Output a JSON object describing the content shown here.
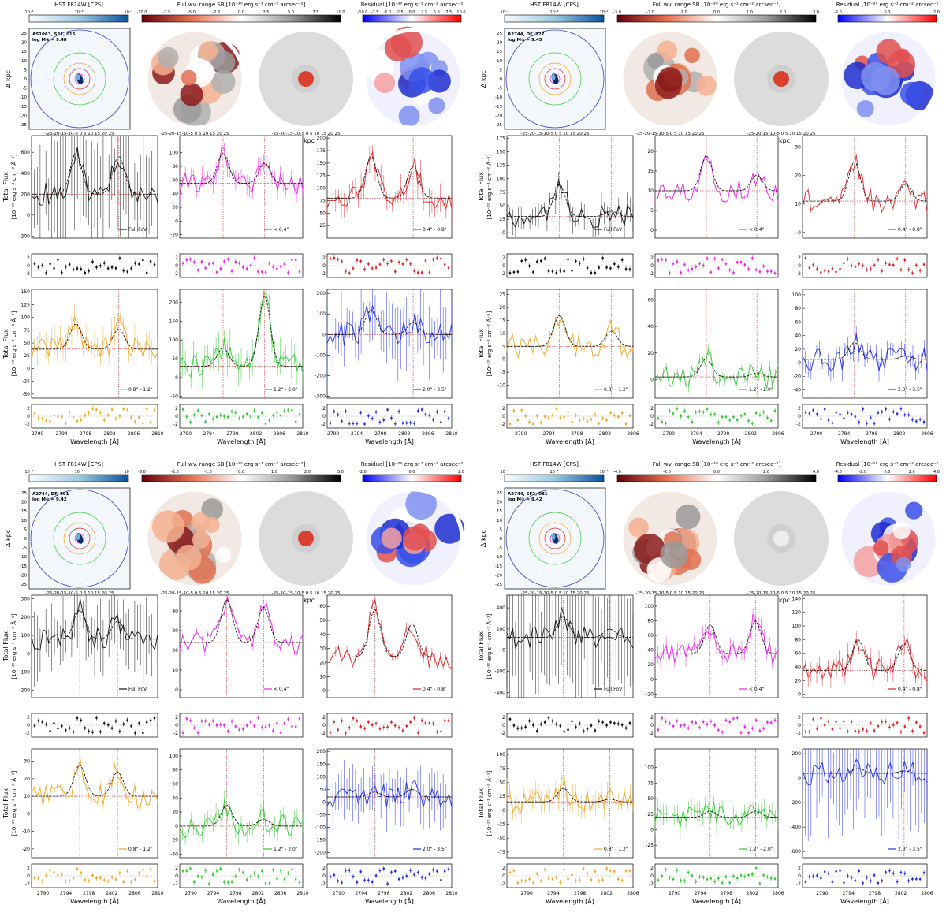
{
  "colors": {
    "fov": "#111111",
    "r1": "#ee22ee",
    "r2": "#e02424",
    "r3": "#f5a623",
    "r4": "#33cc33",
    "r5": "#1f2ee8"
  },
  "image_headers": {
    "hst": "HST F814W [CPS]",
    "full_sb": "Full wv. range SB [10⁻²⁰ erg s⁻¹ cm⁻² arcsec⁻²]",
    "residual": "Residual [10⁻²⁰ erg s⁻¹ cm⁻² arcsec⁻²"
  },
  "hst_ticks": [
    "10⁻⁴",
    "10⁻³",
    "10⁻²"
  ],
  "axis_text": {
    "dkpc": "Δ kpc",
    "wavelength": "Wavelength [Å]",
    "flux_l1": "Total Flux",
    "flux_l2": "[10⁻²⁰ erg s⁻¹ cm⁻² Å⁻¹]"
  },
  "kpc_ticks_y": [
    "25",
    "20",
    "15",
    "10",
    "5",
    "0",
    "-5",
    "-10",
    "-15",
    "-20",
    "-25"
  ],
  "kpc_ticks_x": "-25-20-15-10-5 0 5 10 15 20 25",
  "resid_ticks": [
    "2",
    "0",
    "-2"
  ],
  "chart_data": [
    {
      "type": "line",
      "galaxy": "AS1063, SF1, 015",
      "mass": "log M⊙ = 9.48",
      "sb_ticks": [
        "-10.0",
        "-7.5",
        "-5.0",
        "-2.5",
        "0.0",
        "2.5",
        "5.0",
        "7.5",
        "10.0"
      ],
      "res_ticks": [
        "-10.0",
        "-7.5",
        "-5.0",
        "-2.5",
        "0.0",
        "2.5",
        "5.0",
        "7.5",
        "10.0"
      ],
      "xlim": [
        2789,
        2810
      ],
      "xticks": [
        "2790",
        "2794",
        "2798",
        "2802",
        "2806",
        "2810"
      ],
      "lines": [
        2796.4,
        2803.5
      ],
      "panels": [
        {
          "name": "Full FoV",
          "color": "fov",
          "ylim": [
            -220,
            760
          ],
          "yticks": [
            "600",
            "400",
            "200",
            "0",
            "-200"
          ],
          "base": 200,
          "peaks": [
            400,
            370
          ]
        },
        {
          "name": "< 0.4\"",
          "color": "r1",
          "ylim": [
            -25,
            125
          ],
          "yticks": [
            "100",
            "80",
            "60",
            "40",
            "20",
            "0",
            "-20"
          ],
          "base": 55,
          "peaks": [
            45,
            30
          ]
        },
        {
          "name": "0.4\" - 0.8\"",
          "color": "r2",
          "ylim": [
            0,
            205
          ],
          "yticks": [
            "200",
            "175",
            "150",
            "125",
            "100",
            "75",
            "50",
            "25"
          ],
          "base": 80,
          "peaks": [
            85,
            65
          ]
        },
        {
          "name": "0.8\" - 1.2\"",
          "color": "r3",
          "ylim": [
            -58,
            155
          ],
          "yticks": [
            "150",
            "125",
            "100",
            "75",
            "50",
            "25",
            "0",
            "-25",
            "-50"
          ],
          "base": 38,
          "peaks": [
            50,
            40
          ]
        },
        {
          "name": "1.2\" - 2.0\"",
          "color": "r4",
          "ylim": [
            -55,
            235
          ],
          "yticks": [
            "200",
            "150",
            "100",
            "50",
            "0",
            "-50"
          ],
          "base": 30,
          "peaks": [
            50,
            190
          ]
        },
        {
          "name": "2.0\" - 3.5\"",
          "color": "r5",
          "ylim": [
            -310,
            220
          ],
          "yticks": [
            "200",
            "100",
            "0",
            "-100",
            "-200",
            "-300"
          ],
          "base": 0,
          "peaks": [
            120,
            60
          ]
        }
      ]
    },
    {
      "type": "line",
      "galaxy": "A2744, DF, 227",
      "mass": "log M⊙ = 9.45",
      "sb_ticks": [
        "-3.0",
        "-2.0",
        "-1.0",
        "0.0",
        "1.0",
        "2.0",
        "3.0"
      ],
      "res_ticks": [
        "-2.0",
        "0.0",
        "2.0"
      ],
      "xlim": [
        2788,
        2806
      ],
      "xticks": [
        "2790",
        "2794",
        "2798",
        "2802",
        "2806"
      ],
      "lines": [
        2795.5,
        2802.9
      ],
      "panels": [
        {
          "name": "Full FoV",
          "color": "fov",
          "ylim": [
            -10,
            180
          ],
          "yticks": [
            "175",
            "150",
            "125",
            "100",
            "75",
            "50",
            "25",
            "0"
          ],
          "base": 30,
          "peaks": [
            60,
            10
          ]
        },
        {
          "name": "< 0.4\"",
          "color": "r1",
          "ylim": [
            -2,
            24
          ],
          "yticks": [
            "20",
            "15",
            "10",
            "5",
            "0"
          ],
          "base": 10,
          "peaks": [
            9,
            4
          ]
        },
        {
          "name": "0.4\" - 0.8\"",
          "color": "r2",
          "ylim": [
            -2,
            34
          ],
          "yticks": [
            "30",
            "20",
            "10",
            "0"
          ],
          "base": 11,
          "peaks": [
            14,
            6
          ]
        },
        {
          "name": "0.8\" - 1.2\"",
          "color": "r3",
          "ylim": [
            -15,
            27
          ],
          "yticks": [
            "25",
            "20",
            "15",
            "10",
            "5",
            "0",
            "-5",
            "-10"
          ],
          "base": 5,
          "peaks": [
            12,
            6
          ]
        },
        {
          "name": "1.2\" - 2.0\"",
          "color": "r4",
          "ylim": [
            -14,
            68
          ],
          "yticks": [
            "60",
            "40",
            "20",
            "0"
          ],
          "base": 2,
          "peaks": [
            14,
            3
          ]
        },
        {
          "name": "2.0\" - 3.5\"",
          "color": "r5",
          "ylim": [
            -52,
            108
          ],
          "yticks": [
            "100",
            "80",
            "60",
            "40",
            "20",
            "0",
            "-20",
            "-40"
          ],
          "base": 5,
          "peaks": [
            25,
            5
          ]
        }
      ]
    },
    {
      "type": "line",
      "galaxy": "A2744, DF, 091",
      "mass": "log M⊙ = 9.42",
      "sb_ticks": [
        "-3.0",
        "-2.0",
        "-1.0",
        "0.0",
        "1.0",
        "2.0",
        "3.0"
      ],
      "res_ticks": [
        "-2.0",
        "0.0",
        "2.0"
      ],
      "xlim": [
        2788,
        2810
      ],
      "xticks": [
        "2790",
        "2794",
        "2798",
        "2802",
        "2806",
        "2810"
      ],
      "lines": [
        2796.4,
        2803.0
      ],
      "panels": [
        {
          "name": "Full FoV",
          "color": "fov",
          "ylim": [
            -240,
            320
          ],
          "yticks": [
            "300",
            "200",
            "100",
            "0",
            "-100",
            "-200"
          ],
          "base": 80,
          "peaks": [
            160,
            100
          ]
        },
        {
          "name": "< 0.4\"",
          "color": "r1",
          "ylim": [
            -4,
            48
          ],
          "yticks": [
            "40",
            "30",
            "20",
            "10",
            "0"
          ],
          "base": 24,
          "peaks": [
            22,
            18
          ]
        },
        {
          "name": "0.4\" - 0.8\"",
          "color": "r2",
          "ylim": [
            -5,
            68
          ],
          "yticks": [
            "60",
            "50",
            "40",
            "30",
            "20",
            "10",
            "0"
          ],
          "base": 24,
          "peaks": [
            34,
            24
          ]
        },
        {
          "name": "0.8\" - 1.2\"",
          "color": "r3",
          "ylim": [
            -25,
            37
          ],
          "yticks": [
            "30",
            "20",
            "10",
            "0",
            "-10",
            "-20"
          ],
          "base": 10,
          "peaks": [
            18,
            14
          ]
        },
        {
          "name": "1.2\" - 2.0\"",
          "color": "r4",
          "ylim": [
            -45,
            110
          ],
          "yticks": [
            "100",
            "80",
            "60",
            "40",
            "20",
            "0",
            "-20",
            "-40"
          ],
          "base": 0,
          "peaks": [
            30,
            10
          ]
        },
        {
          "name": "2.0\" - 3.5\"",
          "color": "r5",
          "ylim": [
            -220,
            210
          ],
          "yticks": [
            "200",
            "150",
            "100",
            "50",
            "0",
            "-50",
            "-100",
            "-150",
            "-200"
          ],
          "base": 20,
          "peaks": [
            20,
            30
          ]
        }
      ]
    },
    {
      "type": "line",
      "galaxy": "A2744, SF2, 081",
      "mass": "log M⊙ = 9.42",
      "sb_ticks": [
        "-4.0",
        "-2.0",
        "0.0",
        "2.0",
        "4.0"
      ],
      "res_ticks": [
        "-4.0",
        "-2.0",
        "0.0",
        "2.0",
        "4.0"
      ],
      "xlim": [
        2787,
        2806
      ],
      "xticks": [
        "2790",
        "2794",
        "2798",
        "2802",
        "2806"
      ],
      "lines": [
        2795.5,
        2802.5
      ],
      "panels": [
        {
          "name": "Full FoV",
          "color": "fov",
          "ylim": [
            -450,
            520
          ],
          "yticks": [
            "400",
            "200",
            "0",
            "-200",
            "-400"
          ],
          "base": 120,
          "peaks": [
            200,
            80
          ]
        },
        {
          "name": "< 0.4\"",
          "color": "r1",
          "ylim": [
            -25,
            115
          ],
          "yticks": [
            "100",
            "80",
            "60",
            "40",
            "20",
            "0",
            "-20"
          ],
          "base": 35,
          "peaks": [
            40,
            45
          ]
        },
        {
          "name": "0.4\" - 0.8\"",
          "color": "r2",
          "ylim": [
            -5,
            145
          ],
          "yticks": [
            "140",
            "120",
            "100",
            "80",
            "60",
            "40",
            "20",
            "0"
          ],
          "base": 35,
          "peaks": [
            45,
            40
          ]
        },
        {
          "name": "0.8\" - 1.2\"",
          "color": "r3",
          "ylim": [
            -85,
            110
          ],
          "yticks": [
            "100",
            "75",
            "50",
            "25",
            "0",
            "-25",
            "-50",
            "-75"
          ],
          "base": 15,
          "peaks": [
            25,
            5
          ]
        },
        {
          "name": "1.2\" - 2.0\"",
          "color": "r4",
          "ylim": [
            -45,
            130
          ],
          "yticks": [
            "100",
            "75",
            "50",
            "25",
            "0",
            "-25"
          ],
          "base": 20,
          "peaks": [
            10,
            10
          ]
        },
        {
          "name": "2.0\" - 3.5\"",
          "color": "r5",
          "ylim": [
            -650,
            240
          ],
          "yticks": [
            "200",
            "0",
            "-200",
            "-400",
            "-600"
          ],
          "base": 40,
          "peaks": [
            40,
            20
          ]
        }
      ]
    }
  ]
}
